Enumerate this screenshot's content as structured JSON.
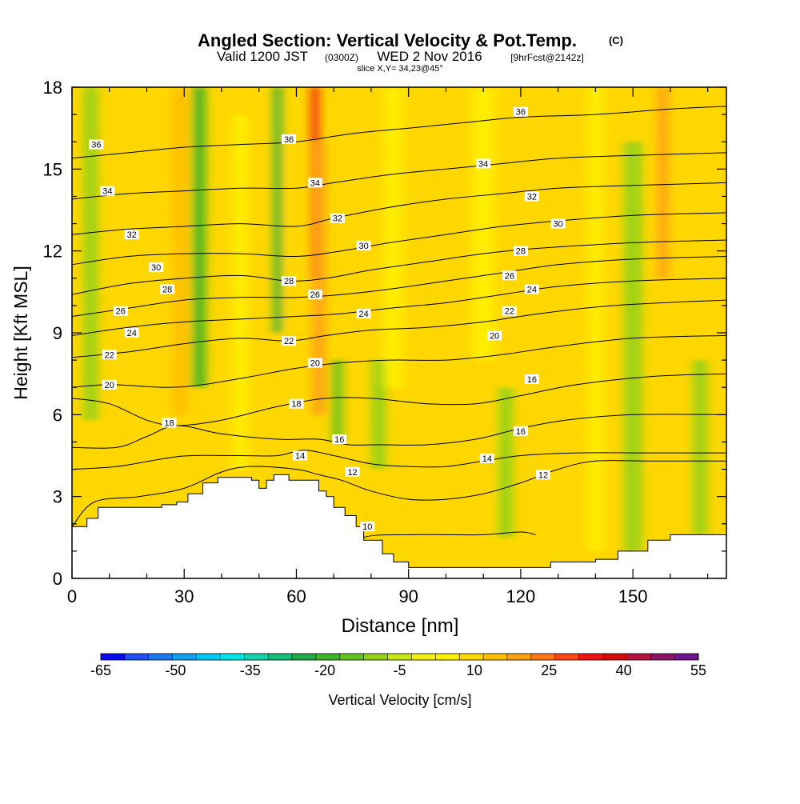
{
  "title": {
    "main": "Angled Section: Vertical Velocity & Pot.Temp.",
    "unit": "(C)",
    "valid_prefix": "Valid 1200 JST",
    "utc": "(0300Z)",
    "date": "WED 2 Nov 2016",
    "forecast": "[9hrFcst@2142z]",
    "slice": "slice X,Y= 34,23@45°"
  },
  "chart_data": {
    "type": "heatmap",
    "xlabel": "Distance [nm]",
    "ylabel": "Height [Kft MSL]",
    "xlim": [
      0,
      175
    ],
    "ylim": [
      0,
      18
    ],
    "x_ticks": [
      0,
      30,
      60,
      90,
      120,
      150
    ],
    "y_ticks": [
      0,
      3,
      6,
      9,
      12,
      15,
      18
    ],
    "colorbar": {
      "label": "Vertical Velocity [cm/s]",
      "tick_labels": [
        "-65",
        "-50",
        "-35",
        "-20",
        "-5",
        "10",
        "25",
        "40",
        "55"
      ],
      "bins": [
        -65,
        -60,
        -55,
        -50,
        -45,
        -40,
        -35,
        -30,
        -25,
        -20,
        -15,
        -10,
        -5,
        0,
        5,
        10,
        15,
        20,
        25,
        30,
        35,
        40,
        45,
        50,
        55
      ],
      "colors": [
        "#0a0af0",
        "#1e4ff5",
        "#1e78f0",
        "#14a0f0",
        "#00c8f5",
        "#00e6e6",
        "#14d2aa",
        "#14be78",
        "#1eaa46",
        "#3cb428",
        "#64c31e",
        "#96d214",
        "#c8e614",
        "#f0f014",
        "#fff000",
        "#ffd700",
        "#ffbe00",
        "#ffa014",
        "#ff7814",
        "#ff4614",
        "#f01414",
        "#d20a0a",
        "#b4143c",
        "#8c1464",
        "#6e148c"
      ]
    },
    "terrain": [
      [
        0,
        1.9
      ],
      [
        4,
        2.2
      ],
      [
        7,
        2.6
      ],
      [
        20,
        2.6
      ],
      [
        24,
        2.7
      ],
      [
        28,
        2.8
      ],
      [
        31,
        3.1
      ],
      [
        35,
        3.5
      ],
      [
        39,
        3.7
      ],
      [
        48,
        3.6
      ],
      [
        50,
        3.3
      ],
      [
        52,
        3.6
      ],
      [
        54,
        3.8
      ],
      [
        58,
        3.6
      ],
      [
        62,
        3.6
      ],
      [
        66,
        3.2
      ],
      [
        68,
        3.0
      ],
      [
        70,
        2.6
      ],
      [
        73,
        2.3
      ],
      [
        76,
        1.9
      ],
      [
        78,
        1.4
      ],
      [
        83,
        0.9
      ],
      [
        86,
        0.6
      ],
      [
        90,
        0.4
      ],
      [
        120,
        0.4
      ],
      [
        128,
        0.6
      ],
      [
        140,
        0.7
      ],
      [
        146,
        1.0
      ],
      [
        154,
        1.4
      ],
      [
        160,
        1.6
      ],
      [
        175,
        1.6
      ]
    ],
    "velocity_columns": [
      {
        "x": 5,
        "w": 4,
        "v": -10,
        "y0": 5.8,
        "y1": 18
      },
      {
        "x": 25,
        "w": 2,
        "v": 12,
        "y0": 3,
        "y1": 13
      },
      {
        "x": 29,
        "w": 4,
        "v": 18,
        "y0": 6,
        "y1": 18
      },
      {
        "x": 34,
        "w": 3.5,
        "v": -20,
        "y0": 7,
        "y1": 18
      },
      {
        "x": 45,
        "w": 4,
        "v": 8,
        "y0": 4,
        "y1": 17
      },
      {
        "x": 55,
        "w": 2,
        "v": -25,
        "y0": 9,
        "y1": 18
      },
      {
        "x": 59,
        "w": 2,
        "v": 10,
        "y0": 6,
        "y1": 16
      },
      {
        "x": 65,
        "w": 2.2,
        "v": 38,
        "y0": 11,
        "y1": 18
      },
      {
        "x": 66,
        "w": 3.5,
        "v": 20,
        "y0": 6,
        "y1": 16
      },
      {
        "x": 71,
        "w": 3,
        "v": -15,
        "y0": 5,
        "y1": 8
      },
      {
        "x": 82,
        "w": 4,
        "v": -10,
        "y0": 4,
        "y1": 8
      },
      {
        "x": 86,
        "w": 5,
        "v": 8,
        "y0": 7,
        "y1": 18
      },
      {
        "x": 110,
        "w": 6,
        "v": 8,
        "y0": 8,
        "y1": 18
      },
      {
        "x": 116,
        "w": 4,
        "v": -10,
        "y0": 1.5,
        "y1": 7
      },
      {
        "x": 140,
        "w": 4,
        "v": 8,
        "y0": 1,
        "y1": 18
      },
      {
        "x": 150,
        "w": 5,
        "v": -8,
        "y0": 1,
        "y1": 16
      },
      {
        "x": 158,
        "w": 3,
        "v": 22,
        "y0": 11,
        "y1": 18
      },
      {
        "x": 168,
        "w": 4,
        "v": -10,
        "y0": 1.6,
        "y1": 8
      }
    ],
    "contours": [
      {
        "label": "10",
        "points": [
          [
            72,
            0
          ],
          [
            74,
            0.8
          ],
          [
            78,
            1.5
          ],
          [
            90,
            1.6
          ],
          [
            100,
            1.6
          ],
          [
            110,
            1.6
          ],
          [
            120,
            1.7
          ],
          [
            124,
            1.6
          ]
        ]
      },
      {
        "label": "12",
        "points": [
          [
            0,
            1.9
          ],
          [
            6,
            2.8
          ],
          [
            18,
            3.0
          ],
          [
            30,
            3.3
          ],
          [
            40,
            3.9
          ],
          [
            48,
            4.1
          ],
          [
            60,
            4.0
          ],
          [
            66,
            3.8
          ],
          [
            72,
            3.6
          ],
          [
            80,
            3.2
          ],
          [
            90,
            2.9
          ],
          [
            100,
            2.9
          ],
          [
            110,
            3.1
          ],
          [
            120,
            3.5
          ],
          [
            130,
            4.0
          ],
          [
            140,
            4.3
          ],
          [
            155,
            4.3
          ],
          [
            175,
            4.3
          ]
        ]
      },
      {
        "label": "14",
        "points": [
          [
            0,
            4.0
          ],
          [
            12,
            4.1
          ],
          [
            25,
            4.4
          ],
          [
            32,
            4.5
          ],
          [
            45,
            4.5
          ],
          [
            55,
            4.5
          ],
          [
            62,
            4.7
          ],
          [
            70,
            4.5
          ],
          [
            80,
            4.2
          ],
          [
            90,
            4.1
          ],
          [
            100,
            4.1
          ],
          [
            110,
            4.3
          ],
          [
            120,
            4.5
          ],
          [
            135,
            4.6
          ],
          [
            155,
            4.6
          ],
          [
            175,
            4.6
          ]
        ]
      },
      {
        "label": "16",
        "points": [
          [
            0,
            4.8
          ],
          [
            12,
            4.8
          ],
          [
            20,
            5.2
          ],
          [
            28,
            5.6
          ],
          [
            40,
            5.3
          ],
          [
            55,
            5.1
          ],
          [
            66,
            5.1
          ],
          [
            74,
            4.9
          ],
          [
            82,
            4.9
          ],
          [
            95,
            4.9
          ],
          [
            108,
            5.1
          ],
          [
            120,
            5.5
          ],
          [
            132,
            5.8
          ],
          [
            150,
            6.0
          ],
          [
            175,
            6.0
          ]
        ]
      },
      {
        "label": "18",
        "points": [
          [
            0,
            6.6
          ],
          [
            10,
            6.4
          ],
          [
            20,
            5.8
          ],
          [
            28,
            5.6
          ],
          [
            40,
            5.8
          ],
          [
            55,
            6.3
          ],
          [
            68,
            6.6
          ],
          [
            80,
            6.6
          ],
          [
            95,
            6.4
          ],
          [
            108,
            6.4
          ],
          [
            120,
            6.7
          ],
          [
            135,
            7.1
          ],
          [
            155,
            7.4
          ],
          [
            175,
            7.5
          ]
        ]
      },
      {
        "label": "20",
        "points": [
          [
            0,
            7.0
          ],
          [
            10,
            7.1
          ],
          [
            25,
            7.0
          ],
          [
            35,
            7.1
          ],
          [
            48,
            7.4
          ],
          [
            60,
            7.7
          ],
          [
            72,
            7.9
          ],
          [
            85,
            8.0
          ],
          [
            100,
            8.0
          ],
          [
            115,
            8.2
          ],
          [
            130,
            8.5
          ],
          [
            150,
            8.8
          ],
          [
            175,
            8.9
          ]
        ]
      },
      {
        "label": "22",
        "points": [
          [
            0,
            8.1
          ],
          [
            15,
            8.3
          ],
          [
            30,
            8.6
          ],
          [
            45,
            8.8
          ],
          [
            58,
            8.7
          ],
          [
            68,
            8.9
          ],
          [
            80,
            9.1
          ],
          [
            95,
            9.2
          ],
          [
            110,
            9.4
          ],
          [
            125,
            9.7
          ],
          [
            145,
            10.0
          ],
          [
            175,
            10.2
          ]
        ]
      },
      {
        "label": "24",
        "points": [
          [
            0,
            8.9
          ],
          [
            15,
            9.2
          ],
          [
            30,
            9.4
          ],
          [
            45,
            9.5
          ],
          [
            60,
            9.6
          ],
          [
            72,
            9.7
          ],
          [
            85,
            9.9
          ],
          [
            100,
            10.1
          ],
          [
            115,
            10.4
          ],
          [
            130,
            10.7
          ],
          [
            150,
            10.9
          ],
          [
            175,
            11.0
          ]
        ]
      },
      {
        "label": "26",
        "points": [
          [
            0,
            9.6
          ],
          [
            15,
            9.9
          ],
          [
            30,
            10.2
          ],
          [
            45,
            10.3
          ],
          [
            60,
            10.3
          ],
          [
            72,
            10.4
          ],
          [
            85,
            10.6
          ],
          [
            100,
            10.9
          ],
          [
            115,
            11.2
          ],
          [
            130,
            11.5
          ],
          [
            150,
            11.7
          ],
          [
            175,
            11.8
          ]
        ]
      },
      {
        "label": "28",
        "points": [
          [
            0,
            10.4
          ],
          [
            15,
            10.8
          ],
          [
            30,
            11.0
          ],
          [
            45,
            11.1
          ],
          [
            58,
            10.9
          ],
          [
            68,
            11.0
          ],
          [
            80,
            11.3
          ],
          [
            95,
            11.6
          ],
          [
            110,
            11.9
          ],
          [
            125,
            12.1
          ],
          [
            150,
            12.3
          ],
          [
            175,
            12.4
          ]
        ]
      },
      {
        "label": "30",
        "points": [
          [
            0,
            11.5
          ],
          [
            15,
            11.8
          ],
          [
            30,
            11.9
          ],
          [
            45,
            11.9
          ],
          [
            60,
            11.8
          ],
          [
            72,
            12.0
          ],
          [
            85,
            12.3
          ],
          [
            100,
            12.6
          ],
          [
            115,
            12.9
          ],
          [
            130,
            13.1
          ],
          [
            150,
            13.3
          ],
          [
            175,
            13.4
          ]
        ]
      },
      {
        "label": "32",
        "points": [
          [
            0,
            12.6
          ],
          [
            15,
            12.8
          ],
          [
            30,
            12.9
          ],
          [
            45,
            13.0
          ],
          [
            60,
            12.9
          ],
          [
            70,
            13.2
          ],
          [
            85,
            13.6
          ],
          [
            100,
            13.9
          ],
          [
            115,
            14.1
          ],
          [
            130,
            14.3
          ],
          [
            150,
            14.4
          ],
          [
            175,
            14.5
          ]
        ]
      },
      {
        "label": "34",
        "points": [
          [
            0,
            13.9
          ],
          [
            15,
            14.1
          ],
          [
            30,
            14.2
          ],
          [
            45,
            14.3
          ],
          [
            60,
            14.3
          ],
          [
            70,
            14.5
          ],
          [
            85,
            14.8
          ],
          [
            100,
            15.0
          ],
          [
            115,
            15.2
          ],
          [
            130,
            15.4
          ],
          [
            150,
            15.5
          ],
          [
            175,
            15.6
          ]
        ]
      },
      {
        "label": "36",
        "points": [
          [
            0,
            15.4
          ],
          [
            15,
            15.6
          ],
          [
            30,
            15.8
          ],
          [
            45,
            15.9
          ],
          [
            60,
            16.0
          ],
          [
            75,
            16.3
          ],
          [
            90,
            16.5
          ],
          [
            105,
            16.7
          ],
          [
            120,
            16.9
          ],
          [
            140,
            17.0
          ],
          [
            160,
            17.2
          ],
          [
            175,
            17.3
          ]
        ]
      }
    ],
    "contour_labels": [
      {
        "text": "36",
        "x": 6.5,
        "y": 15.9
      },
      {
        "text": "34",
        "x": 9.5,
        "y": 14.2
      },
      {
        "text": "32",
        "x": 16,
        "y": 12.6
      },
      {
        "text": "30",
        "x": 22.5,
        "y": 11.4
      },
      {
        "text": "28",
        "x": 25.5,
        "y": 10.6
      },
      {
        "text": "26",
        "x": 13,
        "y": 9.8
      },
      {
        "text": "24",
        "x": 16,
        "y": 9.0
      },
      {
        "text": "22",
        "x": 10,
        "y": 8.2
      },
      {
        "text": "20",
        "x": 10,
        "y": 7.1
      },
      {
        "text": "18",
        "x": 26,
        "y": 5.7
      },
      {
        "text": "36",
        "x": 58,
        "y": 16.1
      },
      {
        "text": "34",
        "x": 65,
        "y": 14.5
      },
      {
        "text": "32",
        "x": 71,
        "y": 13.2
      },
      {
        "text": "30",
        "x": 78,
        "y": 12.2
      },
      {
        "text": "28",
        "x": 58,
        "y": 10.9
      },
      {
        "text": "26",
        "x": 65,
        "y": 10.4
      },
      {
        "text": "24",
        "x": 78,
        "y": 9.7
      },
      {
        "text": "22",
        "x": 58,
        "y": 8.7
      },
      {
        "text": "20",
        "x": 65,
        "y": 7.9
      },
      {
        "text": "18",
        "x": 60,
        "y": 6.4
      },
      {
        "text": "16",
        "x": 71.5,
        "y": 5.1
      },
      {
        "text": "14",
        "x": 61,
        "y": 4.5
      },
      {
        "text": "12",
        "x": 75,
        "y": 3.9
      },
      {
        "text": "10",
        "x": 79,
        "y": 1.9
      },
      {
        "text": "36",
        "x": 120,
        "y": 17.1
      },
      {
        "text": "34",
        "x": 110,
        "y": 15.2
      },
      {
        "text": "32",
        "x": 123,
        "y": 14.0
      },
      {
        "text": "30",
        "x": 130,
        "y": 13.0
      },
      {
        "text": "28",
        "x": 120,
        "y": 12.0
      },
      {
        "text": "26",
        "x": 117,
        "y": 11.1
      },
      {
        "text": "24",
        "x": 123,
        "y": 10.6
      },
      {
        "text": "22",
        "x": 117,
        "y": 9.8
      },
      {
        "text": "20",
        "x": 113,
        "y": 8.9
      },
      {
        "text": "16",
        "x": 123,
        "y": 7.3
      },
      {
        "text": "16",
        "x": 120,
        "y": 5.4
      },
      {
        "text": "14",
        "x": 111,
        "y": 4.4
      },
      {
        "text": "12",
        "x": 126,
        "y": 3.8
      }
    ]
  }
}
